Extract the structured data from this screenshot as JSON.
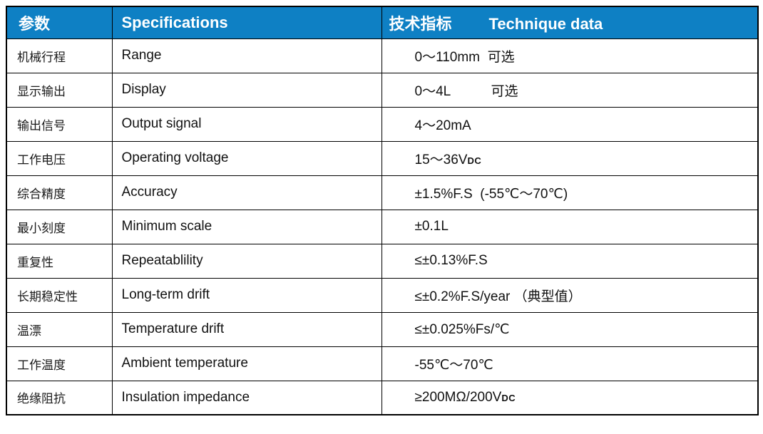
{
  "colors": {
    "header_bg": "#0E80C4",
    "header_text": "#FFFFFF",
    "border": "#000000",
    "body_text": "#111111",
    "page_bg": "#FFFFFF"
  },
  "table": {
    "header": {
      "param": "参数",
      "spec": "Specifications",
      "tech_cn": "技术指标",
      "tech_en": "Technique data"
    },
    "rows": [
      {
        "cn": "机械行程",
        "en": "Range",
        "value": "0～110mm  可选"
      },
      {
        "cn": "显示输出",
        "en": "Display",
        "value": "0～4L　　　可选"
      },
      {
        "cn": "输出信号",
        "en": "Output signal",
        "value": "4～20mA"
      },
      {
        "cn": "工作电压",
        "en": "Operating voltage",
        "value": "15～36V",
        "value_sub": "DC"
      },
      {
        "cn": "综合精度",
        "en": "Accuracy",
        "value": "±1.5%F.S  (-55℃～70℃)"
      },
      {
        "cn": "最小刻度",
        "en": "Minimum scale",
        "value": "±0.1L"
      },
      {
        "cn": "重复性",
        "en": "Repeatablility",
        "value": "≤±0.13%F.S"
      },
      {
        "cn": "长期稳定性",
        "en": "Long-term drift",
        "value": "≤±0.2%F.S/year （典型值）"
      },
      {
        "cn": "温漂",
        "en": "Temperature drift",
        "value": "≤±0.025%Fs/℃"
      },
      {
        "cn": "工作温度",
        "en": "Ambient temperature",
        "value": "-55℃～70℃"
      },
      {
        "cn": "绝缘阻抗",
        "en": "Insulation impedance",
        "value": "≥200MΩ/200V",
        "value_sub": "DC"
      }
    ]
  }
}
